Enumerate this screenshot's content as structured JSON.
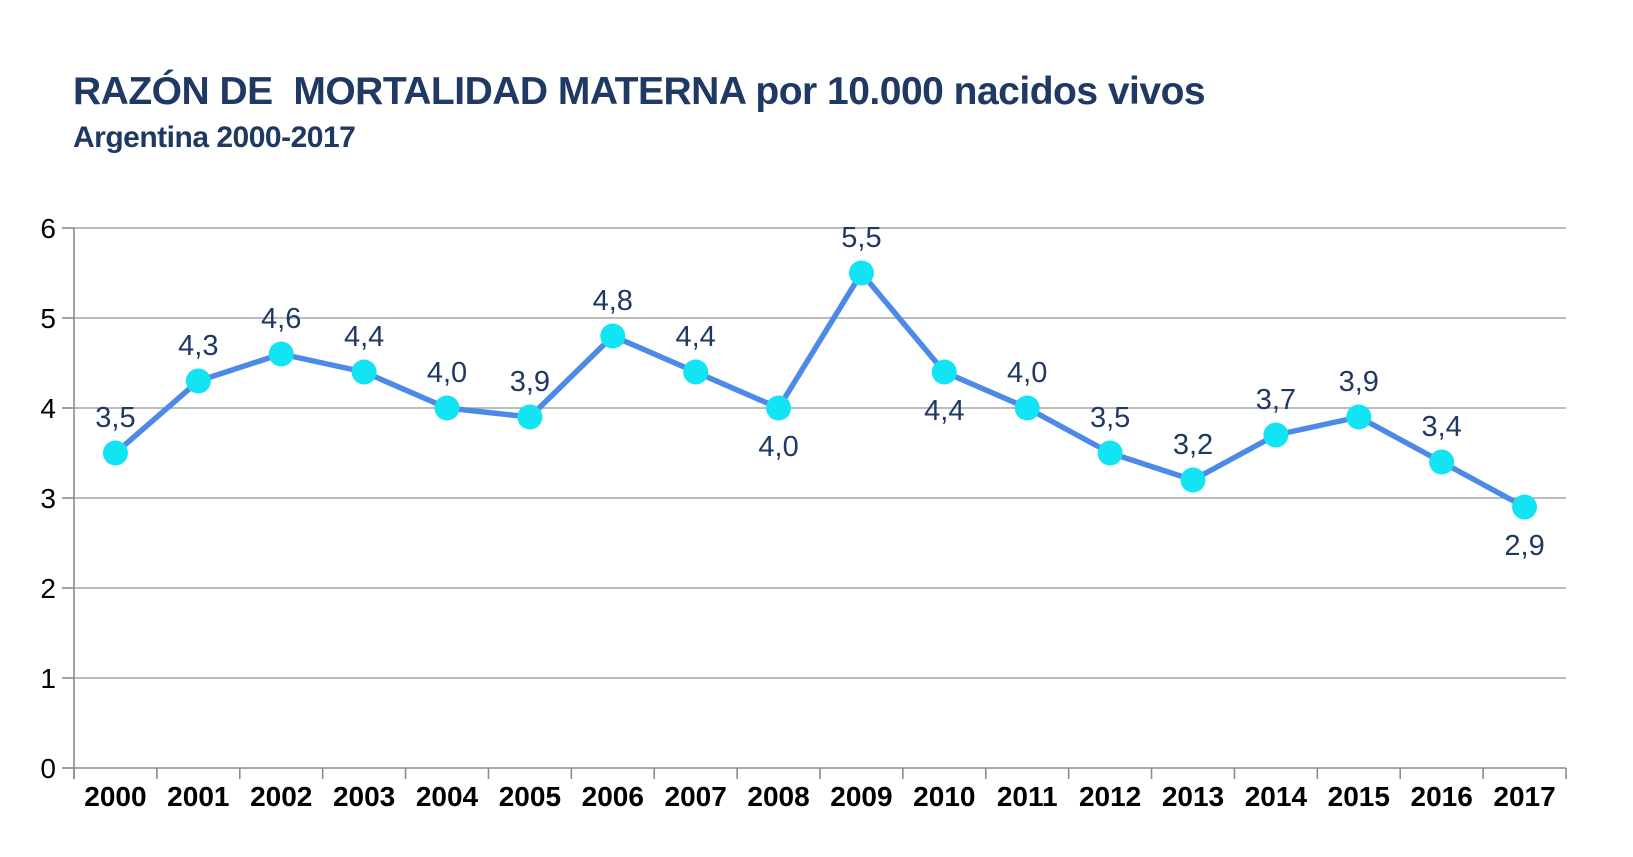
{
  "chart_data": {
    "type": "line",
    "title": "RAZÓN DE  MORTALIDAD MATERNA por 10.000 nacidos vivos",
    "subtitle": "Argentina 2000-2017",
    "xlabel": "",
    "ylabel": "",
    "categories": [
      "2000",
      "2001",
      "2002",
      "2003",
      "2004",
      "2005",
      "2006",
      "2007",
      "2008",
      "2009",
      "2010",
      "2011",
      "2012",
      "2013",
      "2014",
      "2015",
      "2016",
      "2017"
    ],
    "series": [
      {
        "name": "Razón de mortalidad materna por 10.000 nacidos vivos",
        "values": [
          3.5,
          4.3,
          4.6,
          4.4,
          4.0,
          3.9,
          4.8,
          4.4,
          4.0,
          5.5,
          4.4,
          4.0,
          3.5,
          3.2,
          3.7,
          3.9,
          3.4,
          2.9
        ],
        "point_labels": [
          "3,5",
          "4,3",
          "4,6",
          "4,4",
          "4,0",
          "3,9",
          "4,8",
          "4,4",
          "4,0",
          "5,5",
          "4,4",
          "4,0",
          "3,5",
          "3,2",
          "3,7",
          "3,9",
          "3,4",
          "2,9"
        ],
        "label_positions": [
          "above",
          "above",
          "above",
          "above",
          "above",
          "above",
          "above",
          "above",
          "below",
          "above",
          "below",
          "above",
          "above",
          "above",
          "above",
          "above",
          "above",
          "below"
        ]
      }
    ],
    "ylim": [
      0,
      6
    ],
    "yticks": [
      0,
      1,
      2,
      3,
      4,
      5,
      6
    ],
    "grid": true,
    "legend_position": "none",
    "colors": {
      "line": "#4D8AE8",
      "marker": "#12E4F4",
      "value_label": "#1F3864",
      "title": "#1F3864",
      "axis_text": "#000000",
      "gridline": "#A6A6A6",
      "axis_line": "#8C8C8C"
    }
  }
}
